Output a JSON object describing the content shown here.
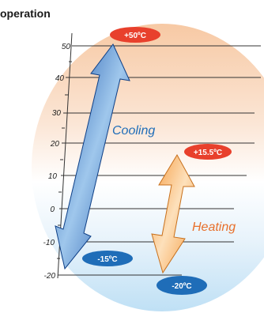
{
  "title": "operation",
  "axis": {
    "ticks": [
      "50",
      "40",
      "30",
      "20",
      "10",
      "0",
      "-10",
      "-20"
    ]
  },
  "cooling": {
    "label": "Cooling",
    "max_label": "+50ºC",
    "min_label": "-15ºC",
    "max_value": 50,
    "min_value": -15,
    "color": "#1f5fb0"
  },
  "heating": {
    "label": "Heating",
    "max_label": "+15.5ºC",
    "min_label": "-20ºC",
    "max_value": 15.5,
    "min_value": -20,
    "color": "#f0a050"
  },
  "badge_colors": {
    "red": "#e8402c",
    "blue": "#1f6db8"
  }
}
